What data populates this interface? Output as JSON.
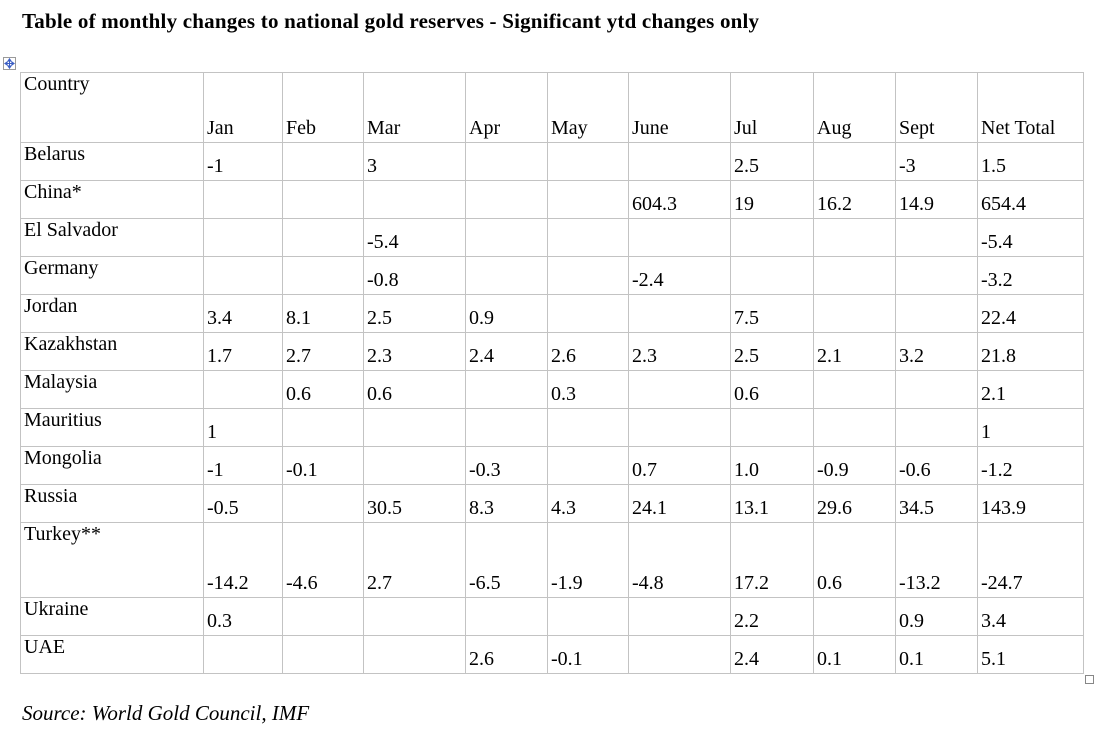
{
  "title": "Table of monthly changes to national gold reserves - Significant ytd changes only",
  "source": "Source: World Gold Council, IMF",
  "icons": {
    "move_handle": "table-move-handle-icon (four-direction arrow cross in small square)",
    "resize_handle": "table-resize-handle-icon (small empty square)"
  },
  "colors": {
    "background": "#ffffff",
    "text": "#000000",
    "grid_border": "#c3c3c3",
    "handle_arrow_blue": "#3c5fc4",
    "handle_border_gray": "#9a9a9a"
  },
  "chart_data": {
    "type": "table",
    "title": "Table of monthly changes to national gold reserves - Significant ytd changes only",
    "columns": [
      "Country",
      "Jan",
      "Feb",
      "Mar",
      "Apr",
      "May",
      "June",
      "Jul",
      "Aug",
      "Sept",
      "Net Total"
    ],
    "rows": [
      {
        "country": "Belarus",
        "values": [
          "-1",
          "",
          "3",
          "",
          "",
          "",
          "2.5",
          "",
          "-3"
        ],
        "net_total": "1.5"
      },
      {
        "country": "China*",
        "values": [
          "",
          "",
          "",
          "",
          "",
          "604.3",
          "19",
          "16.2",
          "14.9"
        ],
        "net_total": "654.4"
      },
      {
        "country": "El Salvador",
        "values": [
          "",
          "",
          "-5.4",
          "",
          "",
          "",
          "",
          "",
          ""
        ],
        "net_total": "-5.4"
      },
      {
        "country": "Germany",
        "values": [
          "",
          "",
          "-0.8",
          "",
          "",
          "-2.4",
          "",
          "",
          ""
        ],
        "net_total": "-3.2"
      },
      {
        "country": "Jordan",
        "values": [
          "3.4",
          "8.1",
          "2.5",
          "0.9",
          "",
          "",
          "7.5",
          "",
          ""
        ],
        "net_total": "22.4"
      },
      {
        "country": "Kazakhstan",
        "values": [
          "1.7",
          "2.7",
          "2.3",
          "2.4",
          "2.6",
          "2.3",
          "2.5",
          "2.1",
          "3.2"
        ],
        "net_total": "21.8"
      },
      {
        "country": "Malaysia",
        "values": [
          "",
          "0.6",
          "0.6",
          "",
          "0.3",
          "",
          "0.6",
          "",
          ""
        ],
        "net_total": "2.1"
      },
      {
        "country": "Mauritius",
        "values": [
          "1",
          "",
          "",
          "",
          "",
          "",
          "",
          "",
          ""
        ],
        "net_total": "1"
      },
      {
        "country": "Mongolia",
        "values": [
          "-1",
          "-0.1",
          "",
          "-0.3",
          "",
          "0.7",
          "1.0",
          "-0.9",
          "-0.6"
        ],
        "net_total": "-1.2"
      },
      {
        "country": "Russia",
        "values": [
          "-0.5",
          "",
          "30.5",
          "8.3",
          "4.3",
          "24.1",
          "13.1",
          "29.6",
          "34.5"
        ],
        "net_total": "143.9"
      },
      {
        "country": "Turkey**",
        "values": [
          "-14.2",
          "-4.6",
          "2.7",
          "-6.5",
          "-1.9",
          "-4.8",
          "17.2",
          "0.6",
          "-13.2"
        ],
        "net_total": "-24.7"
      },
      {
        "country": "Ukraine",
        "values": [
          "0.3",
          "",
          "",
          "",
          "",
          "",
          "2.2",
          "",
          "0.9"
        ],
        "net_total": "3.4"
      },
      {
        "country": "UAE",
        "values": [
          "",
          "",
          "",
          "2.6",
          "-0.1",
          "",
          "2.4",
          "0.1",
          "0.1"
        ],
        "net_total": "5.1"
      }
    ]
  }
}
